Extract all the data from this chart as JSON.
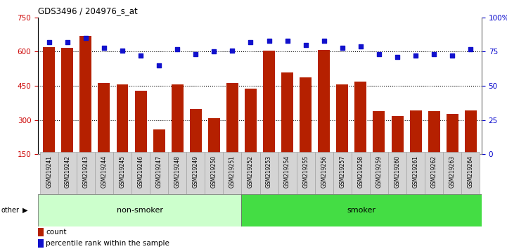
{
  "title": "GDS3496 / 204976_s_at",
  "samples": [
    "GSM219241",
    "GSM219242",
    "GSM219243",
    "GSM219244",
    "GSM219245",
    "GSM219246",
    "GSM219247",
    "GSM219248",
    "GSM219249",
    "GSM219250",
    "GSM219251",
    "GSM219252",
    "GSM219253",
    "GSM219254",
    "GSM219255",
    "GSM219256",
    "GSM219257",
    "GSM219258",
    "GSM219259",
    "GSM219260",
    "GSM219261",
    "GSM219262",
    "GSM219263",
    "GSM219264"
  ],
  "counts": [
    620,
    618,
    668,
    462,
    457,
    428,
    258,
    458,
    348,
    308,
    462,
    438,
    603,
    508,
    488,
    608,
    458,
    468,
    338,
    318,
    342,
    338,
    328,
    342
  ],
  "percentile": [
    82,
    82,
    85,
    78,
    76,
    72,
    65,
    77,
    73,
    75,
    76,
    82,
    83,
    83,
    80,
    83,
    78,
    79,
    73,
    71,
    72,
    73,
    72,
    77
  ],
  "groups": [
    "non-smoker",
    "non-smoker",
    "non-smoker",
    "non-smoker",
    "non-smoker",
    "non-smoker",
    "non-smoker",
    "non-smoker",
    "non-smoker",
    "non-smoker",
    "non-smoker",
    "smoker",
    "smoker",
    "smoker",
    "smoker",
    "smoker",
    "smoker",
    "smoker",
    "smoker",
    "smoker",
    "smoker",
    "smoker",
    "smoker",
    "smoker"
  ],
  "bar_color": "#b52000",
  "dot_color": "#1111cc",
  "non_smoker_color": "#ccffcc",
  "smoker_color": "#44dd44",
  "bg_color": "#ffffff",
  "tick_color_left": "#cc0000",
  "tick_color_right": "#0000cc",
  "ylim_left": [
    150,
    750
  ],
  "ylim_right": [
    0,
    100
  ],
  "yticks_left": [
    150,
    300,
    450,
    600,
    750
  ],
  "yticks_right": [
    0,
    25,
    50,
    75,
    100
  ],
  "ytick_labels_right": [
    "0",
    "25",
    "50",
    "75",
    "100%"
  ],
  "grid_lines": [
    300,
    450,
    600
  ],
  "non_smoker_count": 11,
  "smoker_count": 13
}
